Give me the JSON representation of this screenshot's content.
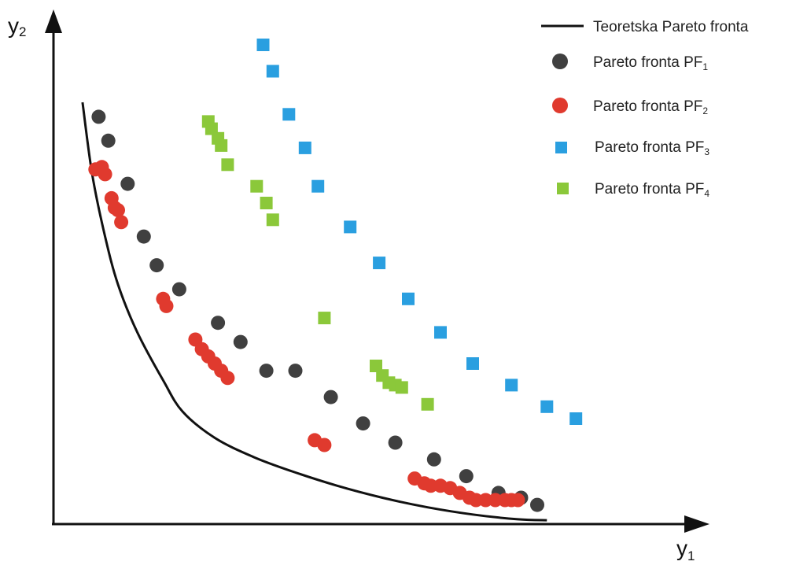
{
  "chart_data": {
    "type": "scatter",
    "title": "",
    "xlabel": "y",
    "xlabel_sub": "1",
    "ylabel": "y",
    "ylabel_sub": "2",
    "xlim": [
      0,
      100
    ],
    "ylim": [
      0,
      100
    ],
    "grid": false,
    "ticks": false,
    "legend_position": "top-right",
    "theoretical_front": {
      "name": "Teoretska Pareto fronta",
      "color": "#111111",
      "x": [
        4.5,
        6,
        8,
        10,
        13,
        17,
        20,
        25,
        31,
        37,
        44,
        51,
        58,
        65,
        72,
        76.5
      ],
      "y": [
        88,
        73,
        60,
        50,
        40,
        30,
        23.5,
        18,
        14,
        11,
        8,
        5.5,
        3.5,
        2,
        1,
        0.8
      ]
    },
    "series": [
      {
        "name": "Pareto fronta PF",
        "name_sub": "1",
        "marker": "circle",
        "color": "#404040",
        "x": [
          7,
          8.5,
          11.5,
          14,
          16,
          19.5,
          25.5,
          29,
          33,
          37.5,
          43,
          48,
          53,
          59,
          64,
          69,
          72.5,
          75
        ],
        "y": [
          85,
          80,
          71,
          60,
          54,
          49,
          42,
          38,
          32,
          32,
          26.5,
          21,
          17,
          13.5,
          10,
          6.5,
          5.5,
          4
        ]
      },
      {
        "name": "Pareto fronta PF",
        "name_sub": "2",
        "marker": "circle",
        "color": "#e03a2e",
        "x": [
          6.5,
          7.5,
          8,
          9,
          9.5,
          10,
          10.5,
          17,
          17.5,
          22,
          23,
          24,
          25,
          26,
          27,
          40.5,
          42,
          56,
          57.5,
          58.5,
          60,
          61.5,
          63,
          64.5,
          65.5,
          67,
          68.5,
          70,
          71,
          72
        ],
        "y": [
          74,
          74.5,
          73,
          68,
          66,
          65.5,
          63,
          47,
          45.5,
          38.5,
          36.5,
          35,
          33.5,
          32,
          30.5,
          17.5,
          16.5,
          9.5,
          8.5,
          8,
          8,
          7.5,
          6.5,
          5.5,
          5,
          5,
          5,
          5,
          5,
          5
        ]
      },
      {
        "name": "Pareto fronta PF",
        "name_sub": "3",
        "marker": "square",
        "color": "#2a9fe0",
        "x": [
          32.5,
          34,
          36.5,
          39,
          41,
          46,
          50.5,
          55,
          60,
          65,
          71,
          76.5,
          81
        ],
        "y": [
          100,
          94.5,
          85.5,
          78.5,
          70.5,
          62,
          54.5,
          47,
          40,
          33.5,
          29,
          24.5,
          22
        ]
      },
      {
        "name": "Pareto fronta PF",
        "name_sub": "4",
        "marker": "square",
        "color": "#8bc83a",
        "x": [
          24,
          24.5,
          25.5,
          26,
          27,
          31.5,
          33,
          34,
          42,
          50,
          51,
          52,
          53,
          54,
          58
        ],
        "y": [
          84,
          82.5,
          80.5,
          79,
          75,
          70.5,
          67,
          63.5,
          43,
          33,
          31,
          29.5,
          29,
          28.5,
          25
        ]
      }
    ]
  }
}
